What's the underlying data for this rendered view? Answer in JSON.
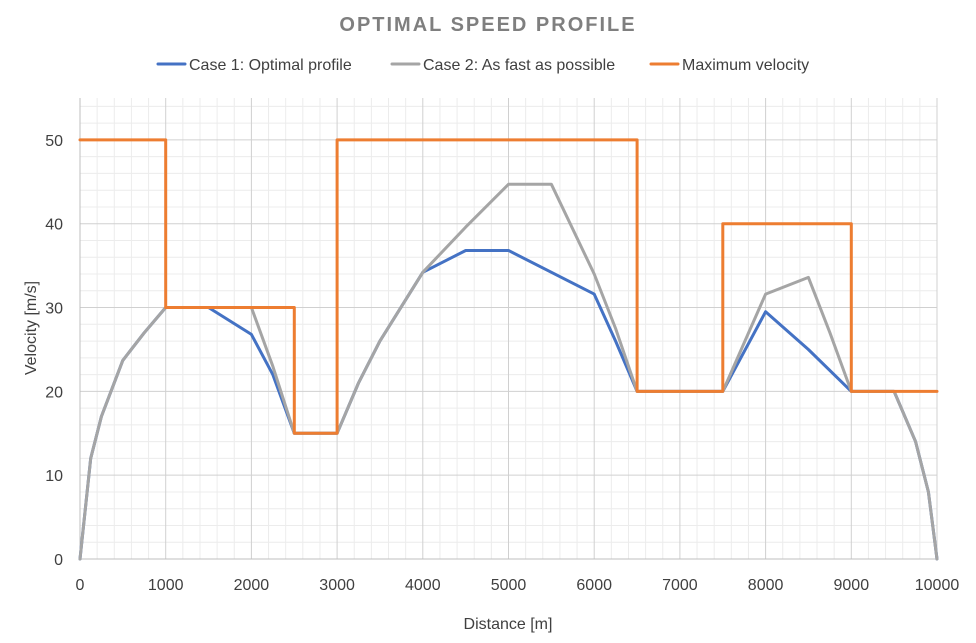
{
  "chart_data": {
    "type": "line",
    "title": "OPTIMAL SPEED PROFILE",
    "xlabel": "Distance [m]",
    "ylabel": "Velocity [m/s]",
    "xlim": [
      0,
      10000
    ],
    "ylim": [
      0,
      55
    ],
    "x_ticks": [
      0,
      1000,
      2000,
      3000,
      4000,
      5000,
      6000,
      7000,
      8000,
      9000,
      10000
    ],
    "y_ticks": [
      0,
      10,
      20,
      30,
      40,
      50
    ],
    "grid": true,
    "legend_position": "top",
    "series": [
      {
        "name": "Case 1: Optimal profile",
        "color": "#4472c4",
        "points": [
          [
            0,
            0
          ],
          [
            125,
            12
          ],
          [
            250,
            17
          ],
          [
            500,
            23.7
          ],
          [
            750,
            27
          ],
          [
            1000,
            30
          ],
          [
            1500,
            30
          ],
          [
            2000,
            26.8
          ],
          [
            2250,
            22
          ],
          [
            2500,
            15
          ],
          [
            3000,
            15
          ],
          [
            3250,
            21
          ],
          [
            3500,
            26
          ],
          [
            4000,
            34.2
          ],
          [
            4500,
            36.8
          ],
          [
            5000,
            36.8
          ],
          [
            6000,
            31.6
          ],
          [
            6250,
            26
          ],
          [
            6500,
            20
          ],
          [
            7500,
            20
          ],
          [
            8000,
            29.5
          ],
          [
            8500,
            25
          ],
          [
            9000,
            20
          ],
          [
            9500,
            20
          ],
          [
            9750,
            14
          ],
          [
            9900,
            8
          ],
          [
            10000,
            0
          ]
        ]
      },
      {
        "name": "Case 2: As fast as possible",
        "color": "#a5a5a5",
        "points": [
          [
            0,
            0
          ],
          [
            125,
            12
          ],
          [
            250,
            17
          ],
          [
            500,
            23.7
          ],
          [
            750,
            27
          ],
          [
            1000,
            30
          ],
          [
            2000,
            30
          ],
          [
            2250,
            23
          ],
          [
            2500,
            15
          ],
          [
            3000,
            15
          ],
          [
            3250,
            21
          ],
          [
            3500,
            26
          ],
          [
            4000,
            34.2
          ],
          [
            4500,
            39.6
          ],
          [
            5000,
            44.7
          ],
          [
            5500,
            44.7
          ],
          [
            6000,
            34
          ],
          [
            6250,
            27.5
          ],
          [
            6500,
            20
          ],
          [
            7500,
            20
          ],
          [
            8000,
            31.6
          ],
          [
            8500,
            33.6
          ],
          [
            8750,
            27
          ],
          [
            9000,
            20
          ],
          [
            9500,
            20
          ],
          [
            9750,
            14
          ],
          [
            9900,
            8
          ],
          [
            10000,
            0
          ]
        ]
      },
      {
        "name": "Maximum velocity",
        "color": "#ed7d31",
        "points": [
          [
            0,
            50
          ],
          [
            1000,
            50
          ],
          [
            1000,
            30
          ],
          [
            2500,
            30
          ],
          [
            2500,
            15
          ],
          [
            3000,
            15
          ],
          [
            3000,
            50
          ],
          [
            6500,
            50
          ],
          [
            6500,
            20
          ],
          [
            7500,
            20
          ],
          [
            7500,
            40
          ],
          [
            9000,
            40
          ],
          [
            9000,
            20
          ],
          [
            10000,
            20
          ]
        ]
      }
    ]
  }
}
